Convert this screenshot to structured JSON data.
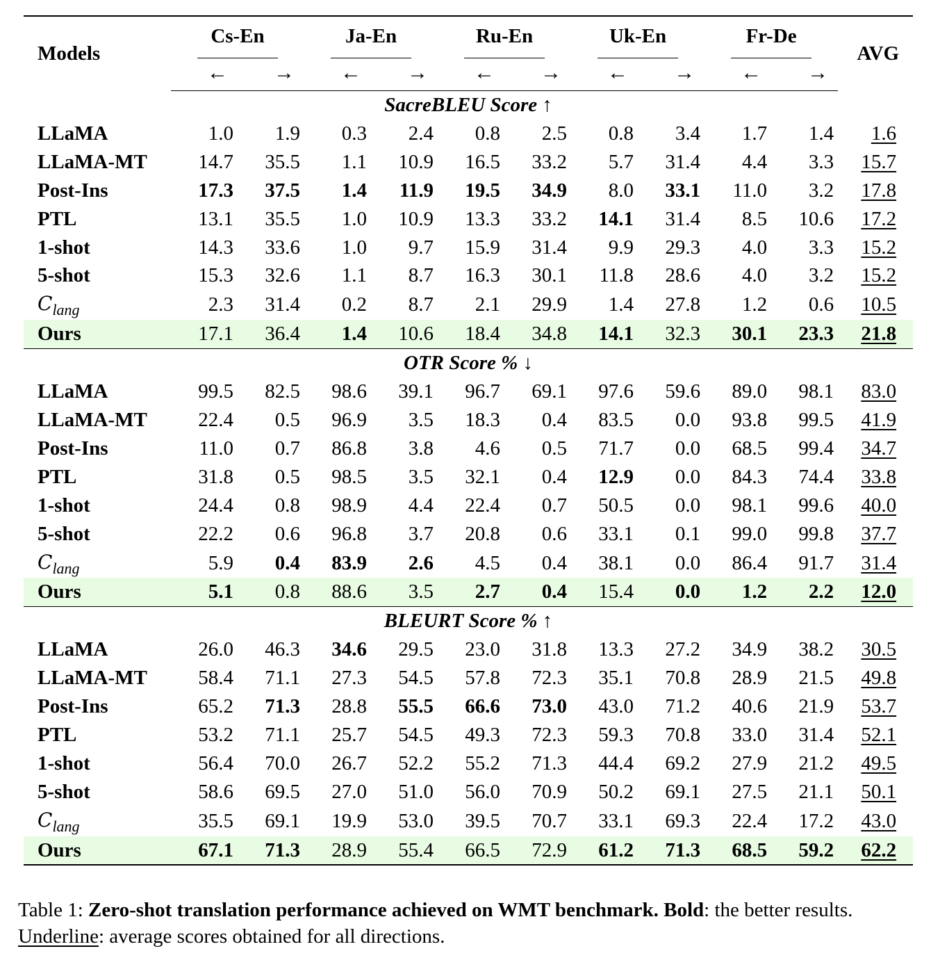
{
  "table": {
    "header": {
      "models_label": "Models",
      "avg_label": "AVG",
      "pairs": [
        "Cs-En",
        "Ja-En",
        "Ru-En",
        "Uk-En",
        "Fr-De"
      ],
      "arrow_left": "←",
      "arrow_right": "→"
    },
    "clang_label": {
      "main": "C",
      "sub": "lang"
    },
    "sections": [
      {
        "title": "SacreBLEU Score ↑",
        "rows": [
          {
            "model": "LLaMA",
            "values": [
              "1.0",
              "1.9",
              "0.3",
              "2.4",
              "0.8",
              "2.5",
              "0.8",
              "3.4",
              "1.7",
              "1.4"
            ],
            "bold": [],
            "avg": "1.6",
            "avg_bold": false
          },
          {
            "model": "LLaMA-MT",
            "values": [
              "14.7",
              "35.5",
              "1.1",
              "10.9",
              "16.5",
              "33.2",
              "5.7",
              "31.4",
              "4.4",
              "3.3"
            ],
            "bold": [],
            "avg": "15.7",
            "avg_bold": false
          },
          {
            "model": "Post-Ins",
            "values": [
              "17.3",
              "37.5",
              "1.4",
              "11.9",
              "19.5",
              "34.9",
              "8.0",
              "33.1",
              "11.0",
              "3.2"
            ],
            "bold": [
              0,
              1,
              2,
              3,
              4,
              5,
              7
            ],
            "avg": "17.8",
            "avg_bold": false
          },
          {
            "model": "PTL",
            "values": [
              "13.1",
              "35.5",
              "1.0",
              "10.9",
              "13.3",
              "33.2",
              "14.1",
              "31.4",
              "8.5",
              "10.6"
            ],
            "bold": [
              6
            ],
            "avg": "17.2",
            "avg_bold": false
          },
          {
            "model": "1-shot",
            "values": [
              "14.3",
              "33.6",
              "1.0",
              "9.7",
              "15.9",
              "31.4",
              "9.9",
              "29.3",
              "4.0",
              "3.3"
            ],
            "bold": [],
            "avg": "15.2",
            "avg_bold": false
          },
          {
            "model": "5-shot",
            "values": [
              "15.3",
              "32.6",
              "1.1",
              "8.7",
              "16.3",
              "30.1",
              "11.8",
              "28.6",
              "4.0",
              "3.2"
            ],
            "bold": [],
            "avg": "15.2",
            "avg_bold": false
          },
          {
            "model": "",
            "clang": true,
            "values": [
              "2.3",
              "31.4",
              "0.2",
              "8.7",
              "2.1",
              "29.9",
              "1.4",
              "27.8",
              "1.2",
              "0.6"
            ],
            "bold": [],
            "avg": "10.5",
            "avg_bold": false
          },
          {
            "model": "Ours",
            "ours": true,
            "values": [
              "17.1",
              "36.4",
              "1.4",
              "10.6",
              "18.4",
              "34.8",
              "14.1",
              "32.3",
              "30.1",
              "23.3"
            ],
            "bold": [
              2,
              6,
              8,
              9
            ],
            "avg": "21.8",
            "avg_bold": true
          }
        ]
      },
      {
        "title": "OTR Score % ↓",
        "rows": [
          {
            "model": "LLaMA",
            "values": [
              "99.5",
              "82.5",
              "98.6",
              "39.1",
              "96.7",
              "69.1",
              "97.6",
              "59.6",
              "89.0",
              "98.1"
            ],
            "bold": [],
            "avg": "83.0",
            "avg_bold": false
          },
          {
            "model": "LLaMA-MT",
            "values": [
              "22.4",
              "0.5",
              "96.9",
              "3.5",
              "18.3",
              "0.4",
              "83.5",
              "0.0",
              "93.8",
              "99.5"
            ],
            "bold": [],
            "avg": "41.9",
            "avg_bold": false
          },
          {
            "model": "Post-Ins",
            "values": [
              "11.0",
              "0.7",
              "86.8",
              "3.8",
              "4.6",
              "0.5",
              "71.7",
              "0.0",
              "68.5",
              "99.4"
            ],
            "bold": [],
            "avg": "34.7",
            "avg_bold": false
          },
          {
            "model": "PTL",
            "values": [
              "31.8",
              "0.5",
              "98.5",
              "3.5",
              "32.1",
              "0.4",
              "12.9",
              "0.0",
              "84.3",
              "74.4"
            ],
            "bold": [
              6
            ],
            "avg": "33.8",
            "avg_bold": false
          },
          {
            "model": "1-shot",
            "values": [
              "24.4",
              "0.8",
              "98.9",
              "4.4",
              "22.4",
              "0.7",
              "50.5",
              "0.0",
              "98.1",
              "99.6"
            ],
            "bold": [],
            "avg": "40.0",
            "avg_bold": false
          },
          {
            "model": "5-shot",
            "values": [
              "22.2",
              "0.6",
              "96.8",
              "3.7",
              "20.8",
              "0.6",
              "33.1",
              "0.1",
              "99.0",
              "99.8"
            ],
            "bold": [],
            "avg": "37.7",
            "avg_bold": false
          },
          {
            "model": "",
            "clang": true,
            "values": [
              "5.9",
              "0.4",
              "83.9",
              "2.6",
              "4.5",
              "0.4",
              "38.1",
              "0.0",
              "86.4",
              "91.7"
            ],
            "bold": [
              1,
              2,
              3
            ],
            "avg": "31.4",
            "avg_bold": false
          },
          {
            "model": "Ours",
            "ours": true,
            "values": [
              "5.1",
              "0.8",
              "88.6",
              "3.5",
              "2.7",
              "0.4",
              "15.4",
              "0.0",
              "1.2",
              "2.2"
            ],
            "bold": [
              0,
              4,
              5,
              7,
              8,
              9
            ],
            "avg": "12.0",
            "avg_bold": true
          }
        ]
      },
      {
        "title": "BLEURT Score % ↑",
        "rows": [
          {
            "model": "LLaMA",
            "values": [
              "26.0",
              "46.3",
              "34.6",
              "29.5",
              "23.0",
              "31.8",
              "13.3",
              "27.2",
              "34.9",
              "38.2"
            ],
            "bold": [
              2
            ],
            "avg": "30.5",
            "avg_bold": false
          },
          {
            "model": "LLaMA-MT",
            "values": [
              "58.4",
              "71.1",
              "27.3",
              "54.5",
              "57.8",
              "72.3",
              "35.1",
              "70.8",
              "28.9",
              "21.5"
            ],
            "bold": [],
            "avg": "49.8",
            "avg_bold": false
          },
          {
            "model": "Post-Ins",
            "values": [
              "65.2",
              "71.3",
              "28.8",
              "55.5",
              "66.6",
              "73.0",
              "43.0",
              "71.2",
              "40.6",
              "21.9"
            ],
            "bold": [
              1,
              3,
              4,
              5
            ],
            "avg": "53.7",
            "avg_bold": false
          },
          {
            "model": "PTL",
            "values": [
              "53.2",
              "71.1",
              "25.7",
              "54.5",
              "49.3",
              "72.3",
              "59.3",
              "70.8",
              "33.0",
              "31.4"
            ],
            "bold": [],
            "avg": "52.1",
            "avg_bold": false
          },
          {
            "model": "1-shot",
            "values": [
              "56.4",
              "70.0",
              "26.7",
              "52.2",
              "55.2",
              "71.3",
              "44.4",
              "69.2",
              "27.9",
              "21.2"
            ],
            "bold": [],
            "avg": "49.5",
            "avg_bold": false
          },
          {
            "model": "5-shot",
            "values": [
              "58.6",
              "69.5",
              "27.0",
              "51.0",
              "56.0",
              "70.9",
              "50.2",
              "69.1",
              "27.5",
              "21.1"
            ],
            "bold": [],
            "avg": "50.1",
            "avg_bold": false
          },
          {
            "model": "",
            "clang": true,
            "values": [
              "35.5",
              "69.1",
              "19.9",
              "53.0",
              "39.5",
              "70.7",
              "33.1",
              "69.3",
              "22.4",
              "17.2"
            ],
            "bold": [],
            "avg": "43.0",
            "avg_bold": false
          },
          {
            "model": "Ours",
            "ours": true,
            "values": [
              "67.1",
              "71.3",
              "28.9",
              "55.4",
              "66.5",
              "72.9",
              "61.2",
              "71.3",
              "68.5",
              "59.2"
            ],
            "bold": [
              0,
              1,
              6,
              7,
              8,
              9
            ],
            "avg": "62.2",
            "avg_bold": true
          }
        ]
      }
    ]
  },
  "caption": {
    "prefix": "Table 1: ",
    "bold_title": "Zero-shot translation performance achieved on WMT benchmark.",
    "bold_word": "Bold",
    "after_bold": ": the better results. ",
    "underline_word": "Underline",
    "after_underline": ": average scores obtained for all directions."
  },
  "colors": {
    "ours_row_bg": "#e8fbe3"
  }
}
